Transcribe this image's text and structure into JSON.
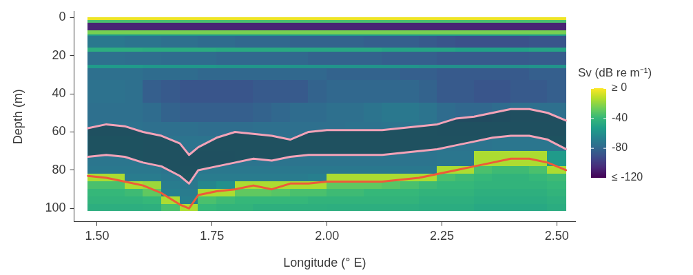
{
  "chart_data": {
    "type": "heatmap",
    "x_label": "Longitude (° E)",
    "y_label": "Depth (m)",
    "xlim": [
      1.45,
      2.54
    ],
    "xticks": [
      {
        "value": 1.5,
        "label": "1.50"
      },
      {
        "value": 1.75,
        "label": "1.75"
      },
      {
        "value": 2,
        "label": "2.00"
      },
      {
        "value": 2.25,
        "label": "2.25"
      },
      {
        "value": 2.5,
        "label": "2.50"
      }
    ],
    "ylim": [
      107,
      -3
    ],
    "yticks": [
      0,
      20,
      40,
      60,
      80,
      100
    ],
    "grid": false,
    "cell_x_edges": [
      1.48,
      1.52,
      1.56,
      1.6,
      1.64,
      1.68,
      1.72,
      1.76,
      1.8,
      1.84,
      1.88,
      1.92,
      1.96,
      2,
      2.04,
      2.08,
      2.12,
      2.16,
      2.2,
      2.24,
      2.28,
      2.32,
      2.36,
      2.4,
      2.44,
      2.48,
      2.52
    ],
    "cell_y_edges": [
      0,
      1.5,
      3,
      7,
      9,
      10,
      16,
      18,
      25,
      27,
      33,
      45,
      55,
      62,
      70,
      78,
      82,
      86,
      90,
      94,
      98,
      101
    ],
    "cells": [
      [
        -3,
        -3,
        -3,
        -3,
        -3,
        -3,
        -3,
        -3,
        -3,
        -3,
        -3,
        -3,
        -3,
        -3,
        -3,
        -3,
        -3,
        -3,
        -3,
        -3,
        -3,
        -3,
        -3,
        -3,
        -3,
        -3
      ],
      [
        -35,
        -35,
        -35,
        -35,
        -35,
        -35,
        -35,
        -35,
        -35,
        -35,
        -35,
        -35,
        -35,
        -35,
        -35,
        -35,
        -35,
        -35,
        -35,
        -35,
        -35,
        -35,
        -35,
        -35,
        -35,
        -35
      ],
      [
        -108,
        -108,
        -108,
        -108,
        -108,
        -108,
        -108,
        -108,
        -108,
        -108,
        -108,
        -108,
        -108,
        -108,
        -108,
        -108,
        -108,
        -108,
        -108,
        -108,
        -108,
        -108,
        -108,
        -108,
        -108,
        -108
      ],
      [
        -25,
        -25,
        -25,
        -25,
        -25,
        -25,
        -25,
        -25,
        -25,
        -25,
        -25,
        -25,
        -25,
        -25,
        -25,
        -25,
        -25,
        -25,
        -25,
        -25,
        -25,
        -25,
        -25,
        -25,
        -25,
        -25
      ],
      [
        -55,
        -55,
        -55,
        -55,
        -55,
        -55,
        -55,
        -55,
        -55,
        -55,
        -55,
        -55,
        -55,
        -55,
        -55,
        -55,
        -55,
        -55,
        -55,
        -55,
        -55,
        -55,
        -55,
        -55,
        -55,
        -55
      ],
      [
        -72,
        -72,
        -74,
        -74,
        -76,
        -76,
        -78,
        -78,
        -80,
        -80,
        -80,
        -82,
        -82,
        -82,
        -82,
        -84,
        -84,
        -84,
        -86,
        -88,
        -90,
        -90,
        -90,
        -90,
        -88,
        -88
      ],
      [
        -45,
        -45,
        -45,
        -46,
        -46,
        -46,
        -46,
        -47,
        -47,
        -47,
        -47,
        -48,
        -48,
        -48,
        -48,
        -48,
        -50,
        -50,
        -50,
        -50,
        -52,
        -52,
        -52,
        -52,
        -50,
        -50
      ],
      [
        -76,
        -76,
        -77,
        -77,
        -78,
        -78,
        -78,
        -80,
        -80,
        -80,
        -80,
        -80,
        -82,
        -82,
        -82,
        -82,
        -84,
        -84,
        -84,
        -86,
        -86,
        -86,
        -86,
        -86,
        -85,
        -85
      ],
      [
        -55,
        -55,
        -55,
        -56,
        -56,
        -56,
        -56,
        -57,
        -57,
        -57,
        -57,
        -58,
        -58,
        -58,
        -58,
        -58,
        -58,
        -58,
        -60,
        -60,
        -60,
        -60,
        -60,
        -60,
        -58,
        -58
      ],
      [
        -76,
        -76,
        -76,
        -78,
        -78,
        -78,
        -80,
        -80,
        -80,
        -80,
        -80,
        -80,
        -80,
        -82,
        -82,
        -82,
        -82,
        -84,
        -84,
        -86,
        -86,
        -86,
        -86,
        -86,
        -84,
        -84
      ],
      [
        -75,
        -75,
        -76,
        -84,
        -86,
        -88,
        -88,
        -88,
        -88,
        -86,
        -86,
        -86,
        -82,
        -80,
        -80,
        -80,
        -80,
        -80,
        -82,
        -86,
        -86,
        -88,
        -88,
        -86,
        -86,
        -84
      ],
      [
        -76,
        -76,
        -76,
        -78,
        -82,
        -84,
        -84,
        -84,
        -84,
        -82,
        -80,
        -78,
        -78,
        -76,
        -76,
        -74,
        -72,
        -72,
        -74,
        -78,
        -80,
        -80,
        -78,
        -76,
        -76,
        -76
      ],
      [
        -75,
        -75,
        -75,
        -76,
        -76,
        -76,
        -77,
        -77,
        -77,
        -76,
        -76,
        -76,
        -76,
        -76,
        -75,
        -75,
        -74,
        -74,
        -74,
        -75,
        -75,
        -75,
        -75,
        -75,
        -75,
        -75
      ],
      [
        -73,
        -73,
        -73,
        -74,
        -74,
        -74,
        -74,
        -74,
        -74,
        -74,
        -74,
        -74,
        -74,
        -74,
        -74,
        -74,
        -74,
        -74,
        -74,
        -74,
        -74,
        -74,
        -73,
        -73,
        -73,
        -73
      ],
      [
        -73,
        -73,
        -73,
        -74,
        -74,
        -75,
        -75,
        -75,
        -74,
        -74,
        -74,
        -74,
        -74,
        -74,
        -74,
        -74,
        -74,
        -74,
        -74,
        -73,
        -73,
        -15,
        -15,
        -15,
        -15,
        -55
      ],
      [
        -72,
        -72,
        -72,
        -72,
        -74,
        -74,
        -72,
        -72,
        -72,
        -72,
        -72,
        -72,
        -72,
        -72,
        -72,
        -72,
        -72,
        -72,
        -72,
        -15,
        -15,
        -35,
        -38,
        -38,
        -35,
        -15
      ],
      [
        -15,
        -15,
        -70,
        -70,
        -72,
        -72,
        -70,
        -70,
        -70,
        -70,
        -70,
        -70,
        -68,
        -15,
        -15,
        -15,
        -15,
        -15,
        -15,
        -35,
        -38,
        -40,
        -42,
        -42,
        -40,
        -38
      ],
      [
        -35,
        -35,
        -15,
        -18,
        -70,
        -72,
        -65,
        -60,
        -15,
        -15,
        -15,
        -15,
        -15,
        -30,
        -30,
        -30,
        -32,
        -35,
        -38,
        -40,
        -40,
        -42,
        -42,
        -42,
        -42,
        -40
      ],
      [
        -40,
        -40,
        -38,
        -30,
        -68,
        -70,
        -15,
        -15,
        -30,
        -30,
        -32,
        -35,
        -35,
        -38,
        -38,
        -40,
        -40,
        -40,
        -42,
        -42,
        -42,
        -44,
        -44,
        -44,
        -44,
        -42
      ],
      [
        -42,
        -42,
        -42,
        -40,
        -15,
        -68,
        -35,
        -38,
        -40,
        -40,
        -40,
        -40,
        -42,
        -42,
        -42,
        -42,
        -42,
        -42,
        -44,
        -44,
        -44,
        -46,
        -46,
        -46,
        -46,
        -44
      ],
      [
        -45,
        -45,
        -45,
        -44,
        -35,
        -15,
        -40,
        -42,
        -42,
        -44,
        -44,
        -44,
        -44,
        -45,
        -45,
        -45,
        -45,
        -45,
        -46,
        -46,
        -46,
        -48,
        -48,
        -48,
        -48,
        -46
      ]
    ],
    "colorbar": {
      "title": "Sv (dB re m⁻¹)",
      "range": [
        -120,
        0
      ],
      "ticks": [
        {
          "value": 0,
          "label": "≥ 0"
        },
        -40,
        -80,
        {
          "value": -120,
          "label": "≤ -120"
        }
      ]
    },
    "series": [
      {
        "type": "line",
        "color": "#f4a3b8",
        "x": [
          1.48,
          1.52,
          1.56,
          1.6,
          1.64,
          1.68,
          1.7,
          1.72,
          1.76,
          1.8,
          1.84,
          1.88,
          1.92,
          1.96,
          2,
          2.04,
          2.08,
          2.12,
          2.16,
          2.2,
          2.24,
          2.28,
          2.32,
          2.36,
          2.4,
          2.44,
          2.48,
          2.52
        ],
        "values": [
          58,
          56,
          57,
          60,
          62,
          66,
          72,
          68,
          63,
          60,
          61,
          62,
          64,
          60,
          59,
          59,
          59,
          59,
          58,
          57,
          56,
          53,
          52,
          50,
          48,
          48,
          50,
          54
        ]
      },
      {
        "type": "line",
        "color": "#f4a3b8",
        "x": [
          1.48,
          1.52,
          1.56,
          1.6,
          1.64,
          1.68,
          1.7,
          1.72,
          1.76,
          1.8,
          1.84,
          1.88,
          1.92,
          1.96,
          2,
          2.04,
          2.08,
          2.12,
          2.16,
          2.2,
          2.24,
          2.28,
          2.32,
          2.36,
          2.4,
          2.44,
          2.48,
          2.52
        ],
        "values": [
          73,
          72,
          73,
          76,
          78,
          83,
          87,
          80,
          78,
          76,
          74,
          75,
          73,
          72,
          72,
          72,
          72,
          72,
          71,
          70,
          69,
          67,
          65,
          63,
          62,
          62,
          64,
          69
        ]
      },
      {
        "type": "line",
        "color": "#ee5a3a",
        "x": [
          1.48,
          1.52,
          1.56,
          1.6,
          1.64,
          1.68,
          1.7,
          1.72,
          1.76,
          1.8,
          1.84,
          1.88,
          1.92,
          1.96,
          2,
          2.04,
          2.08,
          2.12,
          2.16,
          2.2,
          2.24,
          2.28,
          2.32,
          2.36,
          2.4,
          2.44,
          2.48,
          2.52
        ],
        "values": [
          83,
          84,
          86,
          88,
          92,
          98,
          100,
          93,
          91,
          90,
          88,
          90,
          87,
          87,
          86,
          86,
          86,
          86,
          85,
          84,
          82,
          80,
          78,
          76,
          74,
          74,
          76,
          80
        ]
      }
    ]
  }
}
